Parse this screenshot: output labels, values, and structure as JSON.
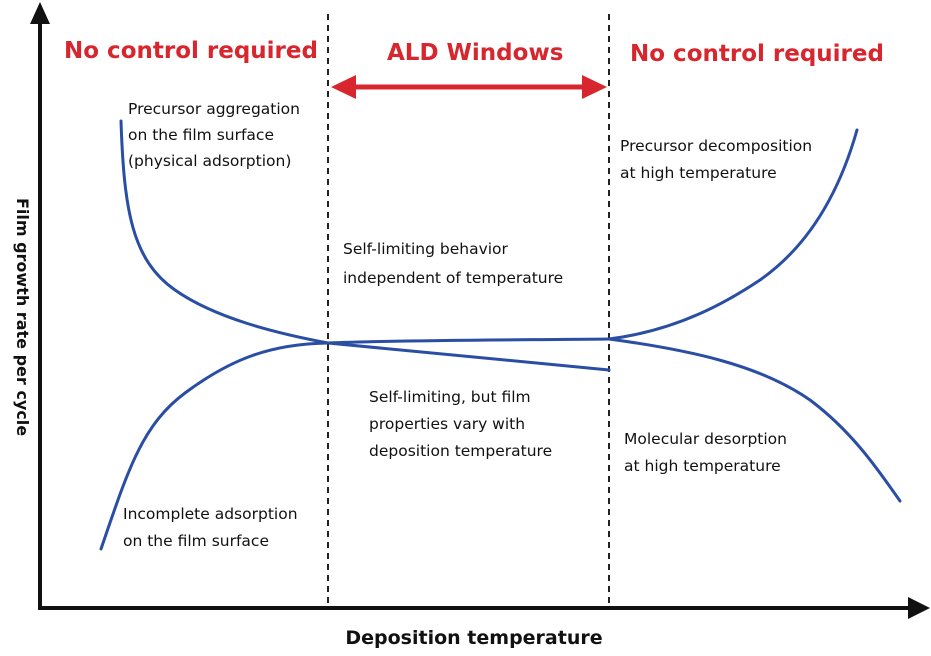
{
  "axes": {
    "x_title": "Deposition temperature",
    "y_title": "Film growth rate per cycle"
  },
  "regions": {
    "left_title": "No control required",
    "center_title": "ALD Windows",
    "right_title": "No control required"
  },
  "annotations": {
    "precursor_aggregation": [
      "Precursor aggregation",
      "on the film surface",
      "(physical adsorption)"
    ],
    "incomplete_adsorption": [
      "Incomplete adsorption",
      "on the film surface"
    ],
    "self_limiting": [
      "Self-limiting behavior",
      "independent of temperature"
    ],
    "self_limiting_varied": [
      "Self-limiting, but film",
      "properties vary with",
      "deposition temperature"
    ],
    "precursor_decomposition": [
      "Precursor decomposition",
      "at high temperature"
    ],
    "molecular_desorption": [
      "Molecular desorption",
      "at high temperature"
    ]
  },
  "colors": {
    "curve": "#2a4ea3",
    "region_title": "#d7262d",
    "window_arrow": "#d7262d",
    "axis": "#111111",
    "divider": "#222222"
  }
}
